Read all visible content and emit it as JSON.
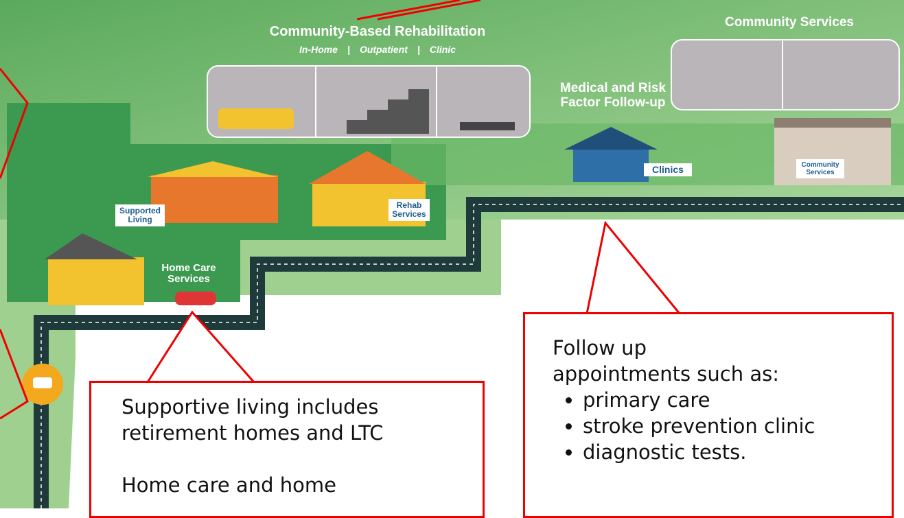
{
  "map": {
    "rehab_title": "Community-Based Rehabilitation",
    "rehab_types": [
      "In-Home",
      "Outpatient",
      "Clinic"
    ],
    "community_title": "Community Services",
    "medical_title": "Medical and Risk Factor Follow-up",
    "signs": {
      "supported_living": "Supported Living",
      "rehab_services": "Rehab Services",
      "home_care": "Home Care Services",
      "clinics": "Clinics",
      "community_services": "Community Services"
    }
  },
  "callouts": [
    {
      "lines": [
        "Supportive living includes retirement homes and LTC",
        "Home care and home"
      ]
    },
    {
      "lines": [
        "Follow up appointments such as:"
      ],
      "bullets": [
        "primary care",
        "stroke prevention clinic",
        "diagnostic tests."
      ]
    }
  ]
}
